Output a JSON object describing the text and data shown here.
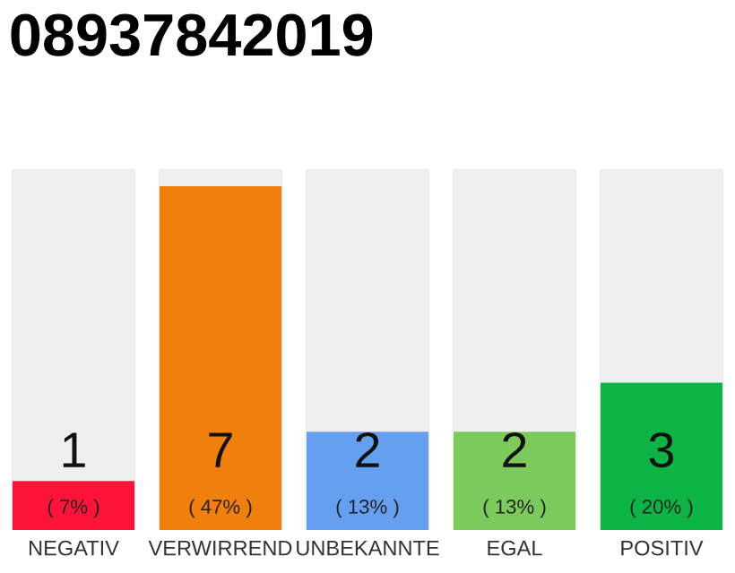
{
  "chart_data": {
    "type": "bar",
    "title": "08937842019",
    "categories": [
      "NEGATIV",
      "VERWIRREND",
      "UNBEKANNTE",
      "EGAL",
      "POSITIV"
    ],
    "values": [
      1,
      7,
      2,
      2,
      3
    ],
    "colors": [
      "#ff1439",
      "#f07f0c",
      "#659ff0",
      "#7cc95c",
      "#0cb445"
    ],
    "value_labels": [
      "1\n( 7% )",
      "7\n( 47% )",
      "2\n( 13% )",
      "2\n( 13% )",
      "3\n( 20% )"
    ],
    "grid": false,
    "legend": false
  }
}
